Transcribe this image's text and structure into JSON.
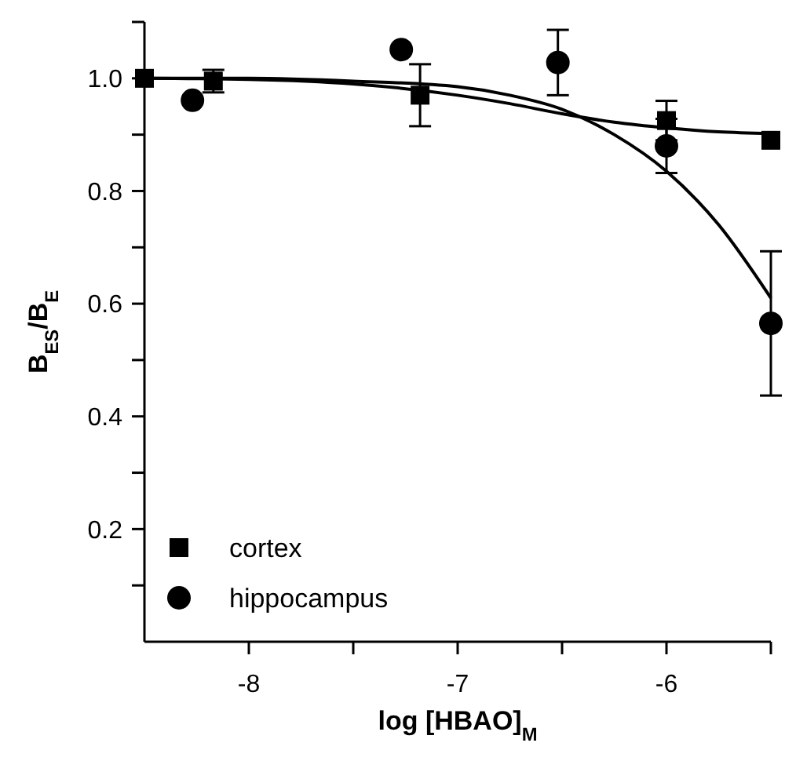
{
  "chart_data": {
    "type": "scatter",
    "xlabel": "log [HBAO]$_{M}$",
    "ylabel": "B$_{ES}$/B$_{E}$",
    "xlim": [
      -8.5,
      -5.5
    ],
    "xticks": [
      -8,
      {
        "value": -7.5,
        "label": null
      },
      -7,
      {
        "value": -6.5,
        "label": null
      },
      -6,
      {
        "value": -5.5,
        "label": null
      }
    ],
    "ylim": [
      0,
      1.1
    ],
    "yticks": [
      {
        "value": 0.1,
        "label": null
      },
      0.2,
      {
        "value": 0.3,
        "label": null
      },
      0.4,
      {
        "value": 0.5,
        "label": null
      },
      0.6,
      {
        "value": 0.7,
        "label": null
      },
      0.8,
      {
        "value": 0.9,
        "label": null
      },
      "1.0",
      {
        "value": 1.1,
        "label": null
      }
    ],
    "legend": "bottom left",
    "grid": false,
    "series": [
      {
        "name": "cortex",
        "marker": "square",
        "color": "#000000",
        "x": [
          -8.5,
          -8.17,
          -7.18,
          -6.0,
          -5.5
        ],
        "values": [
          1.0,
          0.995,
          0.97,
          0.925,
          0.89
        ],
        "errors": [
          null,
          0.02,
          0.055,
          0.035,
          null
        ]
      },
      {
        "name": "hippocampus",
        "marker": "circle",
        "color": "#000000",
        "x": [
          -8.27,
          -7.27,
          -6.52,
          -6.0,
          -5.5
        ],
        "values": [
          0.961,
          1.051,
          1.028,
          0.88,
          0.565
        ],
        "errors": [
          null,
          null,
          0.058,
          0.048,
          0.128
        ]
      },
      {
        "type": "line",
        "marker": "none",
        "color": "#000000",
        "x": [
          -8.5,
          -8,
          -7.5,
          -7,
          -6.75,
          -6.5,
          -6.25,
          -6,
          -5.75,
          -5.5
        ],
        "values": [
          1.0,
          0.998,
          0.99,
          0.97,
          0.955,
          0.937,
          0.922,
          0.912,
          0.905,
          0.902
        ]
      },
      {
        "type": "line",
        "marker": "none",
        "color": "#000000",
        "x": [
          -8.5,
          -8,
          -7.5,
          -7,
          -6.75,
          -6.5,
          -6.25,
          -6,
          -5.75,
          -5.5
        ],
        "values": [
          1.0,
          1.0,
          0.995,
          0.985,
          0.97,
          0.945,
          0.9,
          0.835,
          0.74,
          0.61
        ]
      }
    ]
  }
}
